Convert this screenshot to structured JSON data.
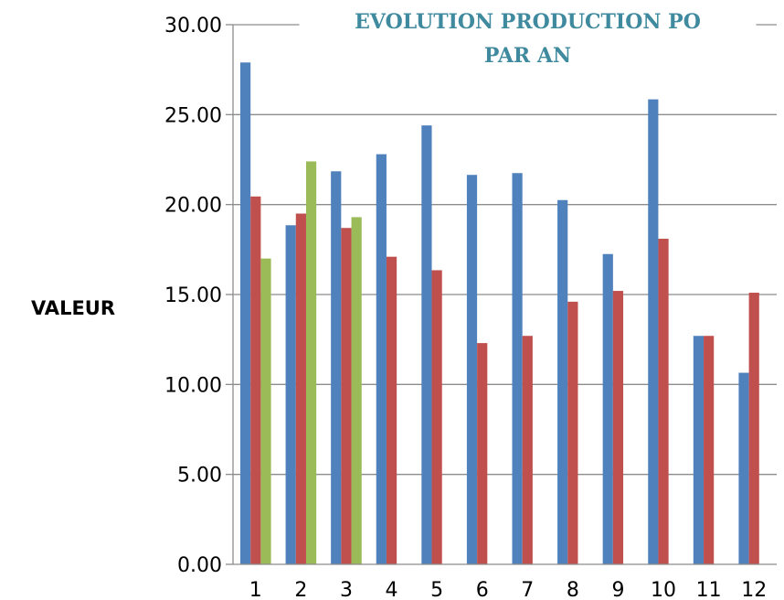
{
  "chart_data": {
    "type": "bar",
    "title_lines": [
      "EVOLUTION PRODUCTION PO",
      "PAR AN"
    ],
    "xlabel": "",
    "ylabel": "VALEUR",
    "ylim": [
      0,
      30
    ],
    "y_ticks": [
      "0.00",
      "5.00",
      "10.00",
      "15.00",
      "20.00",
      "25.00",
      "30.00"
    ],
    "categories": [
      "1",
      "2",
      "3",
      "4",
      "5",
      "6",
      "7",
      "8",
      "9",
      "10",
      "11",
      "12"
    ],
    "grid": true,
    "legend": "none",
    "series": [
      {
        "color": "#4f81bd",
        "values": [
          27.9,
          18.85,
          21.85,
          22.8,
          24.4,
          21.65,
          21.75,
          20.25,
          17.25,
          25.85,
          12.7,
          10.65
        ]
      },
      {
        "color": "#c0504d",
        "values": [
          20.45,
          19.5,
          18.7,
          17.1,
          16.35,
          12.3,
          12.7,
          14.6,
          15.2,
          18.1,
          12.7,
          15.1
        ]
      },
      {
        "color": "#9bbb59",
        "values": [
          17.0,
          22.4,
          19.3,
          null,
          null,
          null,
          null,
          null,
          null,
          null,
          null,
          null
        ]
      }
    ]
  }
}
